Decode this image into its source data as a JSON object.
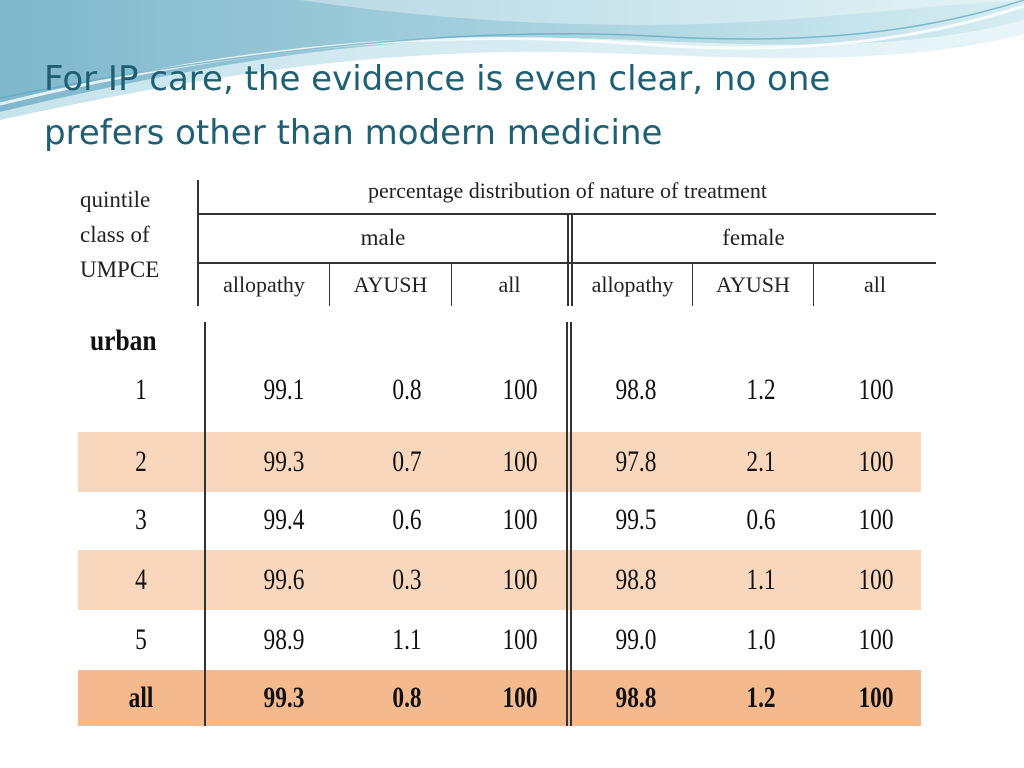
{
  "title": "For IP care, the evidence is even clear, no one prefers other than modern medicine",
  "table": {
    "row_header": [
      "quintile",
      "class of",
      "UMPCE"
    ],
    "group_header": "percentage distribution of nature of treatment",
    "sex_groups": [
      "male",
      "female"
    ],
    "columns": [
      "allopathy",
      "AYUSH",
      "all",
      "allopathy",
      "AYUSH",
      "all"
    ],
    "section_label": "urban",
    "rows": [
      {
        "quintile": "1",
        "values": [
          "99.1",
          "0.8",
          "100",
          "98.8",
          "1.2",
          "100"
        ]
      },
      {
        "quintile": "2",
        "values": [
          "99.3",
          "0.7",
          "100",
          "97.8",
          "2.1",
          "100"
        ]
      },
      {
        "quintile": "3",
        "values": [
          "99.4",
          "0.6",
          "100",
          "99.5",
          "0.6",
          "100"
        ]
      },
      {
        "quintile": "4",
        "values": [
          "99.6",
          "0.3",
          "100",
          "98.8",
          "1.1",
          "100"
        ]
      },
      {
        "quintile": "5",
        "values": [
          "98.9",
          "1.1",
          "100",
          "99.0",
          "1.0",
          "100"
        ]
      },
      {
        "quintile": "all",
        "values": [
          "99.3",
          "0.8",
          "100",
          "98.8",
          "1.2",
          "100"
        ]
      }
    ]
  }
}
